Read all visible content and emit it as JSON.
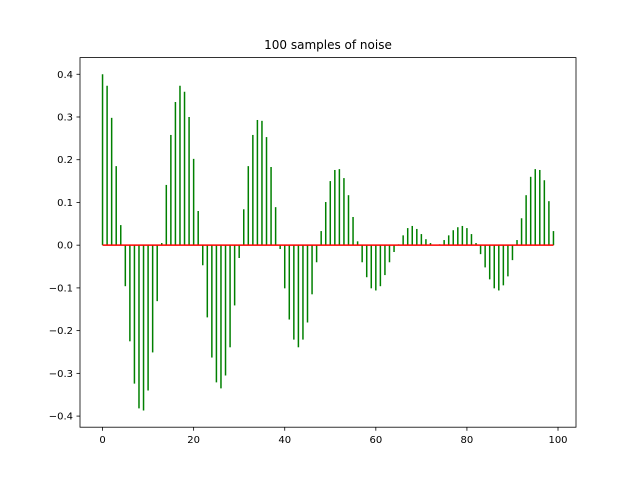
{
  "chart_data": {
    "type": "stem",
    "title": "100 samples of noise",
    "x": [
      0,
      1,
      2,
      3,
      4,
      5,
      6,
      7,
      8,
      9,
      10,
      11,
      12,
      13,
      14,
      15,
      16,
      17,
      18,
      19,
      20,
      21,
      22,
      23,
      24,
      25,
      26,
      27,
      28,
      29,
      30,
      31,
      32,
      33,
      34,
      35,
      36,
      37,
      38,
      39,
      40,
      41,
      42,
      43,
      44,
      45,
      46,
      47,
      48,
      49,
      50,
      51,
      52,
      53,
      54,
      55,
      56,
      57,
      58,
      59,
      60,
      61,
      62,
      63,
      64,
      65,
      66,
      67,
      68,
      69,
      70,
      71,
      72,
      73,
      74,
      75,
      76,
      77,
      78,
      79,
      80,
      81,
      82,
      83,
      84,
      85,
      86,
      87,
      88,
      89,
      90,
      91,
      92,
      93,
      94,
      95,
      96,
      97,
      98,
      99
    ],
    "values": [
      0.4,
      0.373,
      0.298,
      0.185,
      0.047,
      -0.096,
      -0.225,
      -0.324,
      -0.382,
      -0.387,
      -0.34,
      -0.251,
      -0.131,
      0.005,
      0.141,
      0.258,
      0.335,
      0.373,
      0.359,
      0.3,
      0.202,
      0.08,
      -0.047,
      -0.169,
      -0.263,
      -0.321,
      -0.335,
      -0.305,
      -0.239,
      -0.141,
      -0.03,
      0.084,
      0.185,
      0.258,
      0.293,
      0.291,
      0.253,
      0.183,
      0.089,
      -0.009,
      -0.101,
      -0.174,
      -0.221,
      -0.239,
      -0.221,
      -0.181,
      -0.115,
      -0.04,
      0.033,
      0.101,
      0.15,
      0.176,
      0.178,
      0.157,
      0.117,
      0.066,
      0.009,
      -0.04,
      -0.075,
      -0.101,
      -0.106,
      -0.096,
      -0.07,
      -0.04,
      -0.016,
      0.002,
      0.023,
      0.04,
      0.045,
      0.038,
      0.026,
      0.014,
      0.005,
      0.0,
      0.002,
      0.012,
      0.023,
      0.035,
      0.042,
      0.045,
      0.04,
      0.026,
      0.005,
      -0.021,
      -0.052,
      -0.08,
      -0.101,
      -0.106,
      -0.094,
      -0.073,
      -0.035,
      0.012,
      0.063,
      0.117,
      0.16,
      0.178,
      0.176,
      0.152,
      0.103,
      0.033
    ],
    "color": "#008000",
    "baseline_color": "#ff0000",
    "xlim": [
      -4.95,
      103.95
    ],
    "xticks": [
      0,
      20,
      40,
      60,
      80,
      100
    ],
    "ylim": [
      -0.426,
      0.439
    ],
    "yticks": [
      {
        "value": -0.4,
        "label": "−0.4"
      },
      {
        "value": -0.3,
        "label": "−0.3"
      },
      {
        "value": -0.2,
        "label": "−0.2"
      },
      {
        "value": -0.1,
        "label": "−0.1"
      },
      {
        "value": 0,
        "label": "0.0"
      },
      0.1,
      0.2,
      0.3,
      0.4
    ],
    "grid": false
  }
}
